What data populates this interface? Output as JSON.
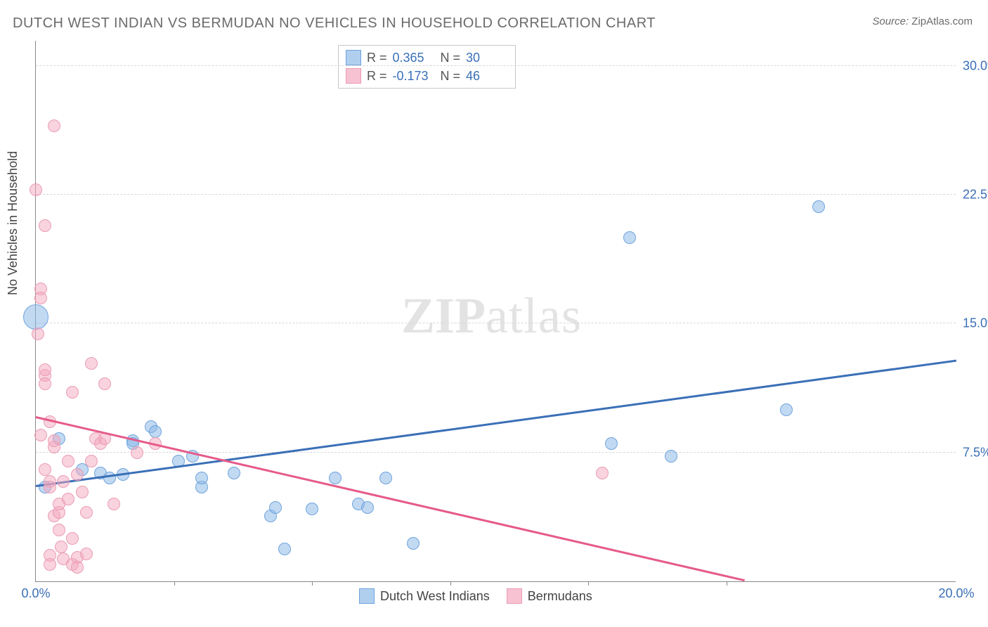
{
  "title": "DUTCH WEST INDIAN VS BERMUDAN NO VEHICLES IN HOUSEHOLD CORRELATION CHART",
  "source_label": "Source:",
  "source_value": "ZipAtlas.com",
  "ylabel": "No Vehicles in Household",
  "watermark_a": "ZIP",
  "watermark_b": "atlas",
  "chart": {
    "type": "scatter",
    "xlim": [
      0,
      20
    ],
    "ylim": [
      0,
      31.5
    ],
    "y_ticks": [
      7.5,
      15.0,
      22.5,
      30.0
    ],
    "y_tick_labels": [
      "7.5%",
      "15.0%",
      "22.5%",
      "30.0%"
    ],
    "x_ticks": [
      0,
      20
    ],
    "x_tick_labels": [
      "0.0%",
      "20.0%"
    ],
    "x_minor_ticks": [
      3,
      6,
      9,
      12,
      15
    ],
    "background_color": "#ffffff",
    "grid_color": "#d8d8d8",
    "axis_color": "#888888",
    "tick_label_color": "#3a6fb7",
    "point_radius": 9,
    "series": [
      {
        "name_key": "legend.dutch",
        "color_fill": "#8fbae8",
        "color_stroke": "#6fa4dd",
        "trend_color": "#3a6fb7",
        "trend": {
          "x1": 0,
          "y1": 5.5,
          "x2": 20,
          "y2": 12.8
        },
        "points": [
          [
            0.0,
            15.4,
            18
          ],
          [
            0.2,
            5.5,
            9
          ],
          [
            0.5,
            8.3,
            9
          ],
          [
            1.0,
            6.5,
            9
          ],
          [
            1.4,
            6.3,
            9
          ],
          [
            1.6,
            6.0,
            9
          ],
          [
            1.9,
            6.2,
            9
          ],
          [
            2.1,
            8.2,
            9
          ],
          [
            2.1,
            8.0,
            9
          ],
          [
            2.5,
            9.0,
            9
          ],
          [
            2.6,
            8.7,
            9
          ],
          [
            3.1,
            7.0,
            9
          ],
          [
            3.4,
            7.3,
            9
          ],
          [
            3.6,
            5.5,
            9
          ],
          [
            3.6,
            6.0,
            9
          ],
          [
            4.3,
            6.3,
            9
          ],
          [
            5.1,
            3.8,
            9
          ],
          [
            5.2,
            4.3,
            9
          ],
          [
            5.4,
            1.9,
            9
          ],
          [
            6.0,
            4.2,
            9
          ],
          [
            6.5,
            6.0,
            9
          ],
          [
            7.0,
            4.5,
            9
          ],
          [
            7.2,
            4.3,
            9
          ],
          [
            7.6,
            6.0,
            9
          ],
          [
            8.2,
            2.2,
            9
          ],
          [
            12.5,
            8.0,
            9
          ],
          [
            12.9,
            20.0,
            9
          ],
          [
            13.8,
            7.3,
            9
          ],
          [
            16.3,
            10.0,
            9
          ],
          [
            17.0,
            21.8,
            9
          ]
        ]
      },
      {
        "name_key": "legend.bermudans",
        "color_fill": "#f4a8be",
        "color_stroke": "#ea9cb5",
        "trend_color": "#e65a8a",
        "trend": {
          "x1": 0,
          "y1": 9.5,
          "x2": 15.4,
          "y2": 0.0
        },
        "points": [
          [
            0.0,
            22.8,
            9
          ],
          [
            0.05,
            14.4,
            9
          ],
          [
            0.1,
            17.0,
            9
          ],
          [
            0.1,
            16.5,
            9
          ],
          [
            0.1,
            8.5,
            9
          ],
          [
            0.2,
            20.7,
            9
          ],
          [
            0.2,
            12.0,
            9
          ],
          [
            0.2,
            12.3,
            9
          ],
          [
            0.2,
            11.5,
            9
          ],
          [
            0.2,
            6.5,
            9
          ],
          [
            0.3,
            9.3,
            9
          ],
          [
            0.3,
            5.8,
            9
          ],
          [
            0.3,
            5.5,
            9
          ],
          [
            0.3,
            1.5,
            9
          ],
          [
            0.3,
            1.0,
            9
          ],
          [
            0.4,
            26.5,
            9
          ],
          [
            0.4,
            3.8,
            9
          ],
          [
            0.4,
            7.8,
            9
          ],
          [
            0.4,
            8.2,
            9
          ],
          [
            0.5,
            4.0,
            9
          ],
          [
            0.5,
            4.5,
            9
          ],
          [
            0.5,
            3.0,
            9
          ],
          [
            0.55,
            2.0,
            9
          ],
          [
            0.6,
            1.3,
            9
          ],
          [
            0.6,
            5.8,
            9
          ],
          [
            0.7,
            4.8,
            9
          ],
          [
            0.7,
            7.0,
            9
          ],
          [
            0.8,
            11.0,
            9
          ],
          [
            0.8,
            2.5,
            9
          ],
          [
            0.8,
            1.0,
            9
          ],
          [
            0.9,
            1.4,
            9
          ],
          [
            0.9,
            0.8,
            9
          ],
          [
            0.9,
            6.2,
            9
          ],
          [
            1.0,
            5.2,
            9
          ],
          [
            1.1,
            4.0,
            9
          ],
          [
            1.1,
            1.6,
            9
          ],
          [
            1.2,
            12.7,
            9
          ],
          [
            1.2,
            7.0,
            9
          ],
          [
            1.3,
            8.3,
            9
          ],
          [
            1.4,
            8.0,
            9
          ],
          [
            1.5,
            11.5,
            9
          ],
          [
            1.5,
            8.3,
            9
          ],
          [
            1.7,
            4.5,
            9
          ],
          [
            2.2,
            7.5,
            9
          ],
          [
            2.6,
            8.0,
            9
          ],
          [
            12.3,
            6.3,
            9
          ]
        ]
      }
    ]
  },
  "stats": {
    "rows": [
      {
        "swatch": "blue",
        "r_label": "R =",
        "r": "0.365",
        "n_label": "N =",
        "n": "30"
      },
      {
        "swatch": "pink",
        "r_label": "R =",
        "r": "-0.173",
        "n_label": "N =",
        "n": "46"
      }
    ]
  },
  "legend": {
    "dutch": "Dutch West Indians",
    "bermudans": "Bermudans"
  }
}
